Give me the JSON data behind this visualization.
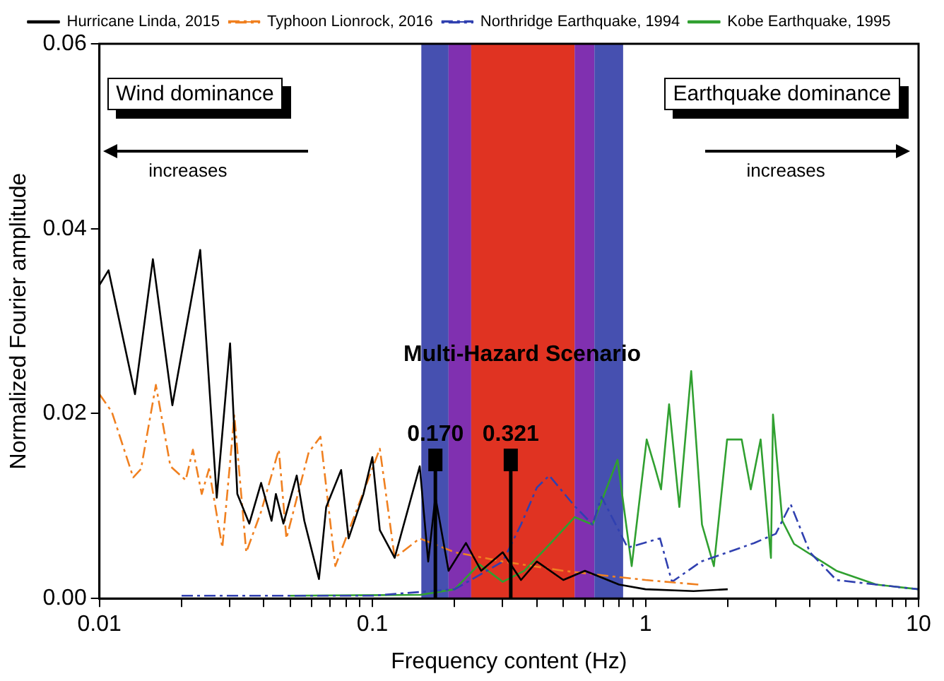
{
  "chart_data": {
    "type": "line",
    "xlabel": "Frequency content (Hz)",
    "ylabel": "Normalized Fourier amplitude",
    "log": "x",
    "xlim": [
      0.01,
      10
    ],
    "ylim": [
      0,
      0.06
    ],
    "xticks": [
      0.01,
      {
        "value": 0.02,
        "label": null
      },
      {
        "value": 0.03,
        "label": null
      },
      {
        "value": 0.04,
        "label": null
      },
      {
        "value": 0.05,
        "label": null
      },
      {
        "value": 0.06,
        "label": null
      },
      {
        "value": 0.07,
        "label": null
      },
      {
        "value": 0.08,
        "label": null
      },
      {
        "value": 0.09,
        "label": null
      },
      0.1,
      {
        "value": 0.2,
        "label": null
      },
      {
        "value": 0.3,
        "label": null
      },
      {
        "value": 0.4,
        "label": null
      },
      {
        "value": 0.5,
        "label": null
      },
      {
        "value": 0.6,
        "label": null
      },
      {
        "value": 0.7,
        "label": null
      },
      {
        "value": 0.8,
        "label": null
      },
      {
        "value": 0.9,
        "label": null
      },
      1,
      {
        "value": 2,
        "label": null
      },
      {
        "value": 3,
        "label": null
      },
      {
        "value": 4,
        "label": null
      },
      {
        "value": 5,
        "label": null
      },
      {
        "value": 6,
        "label": null
      },
      {
        "value": 7,
        "label": null
      },
      {
        "value": 8,
        "label": null
      },
      {
        "value": 9,
        "label": null
      },
      10
    ],
    "yticks": [
      {
        "value": 0,
        "label": "0.00"
      },
      {
        "value": 0.02,
        "label": "0.02"
      },
      {
        "value": 0.04,
        "label": "0.04"
      },
      {
        "value": 0.06,
        "label": "0.06"
      }
    ],
    "grid": false,
    "legend": "top",
    "marker": "none",
    "bands": [
      {
        "axis": "x",
        "from": 0.151,
        "to": 0.19,
        "color": "#4650b0"
      },
      {
        "axis": "x",
        "from": 0.19,
        "to": 0.23,
        "color": "#8030b0"
      },
      {
        "axis": "x",
        "from": 0.23,
        "to": 0.55,
        "color": "#e03322"
      },
      {
        "axis": "x",
        "from": 0.55,
        "to": 0.65,
        "color": "#8030b0"
      },
      {
        "axis": "x",
        "from": 0.65,
        "to": 0.828,
        "color": "#4650b0"
      }
    ],
    "ref_lines": [
      {
        "axis": "x",
        "value": 0.17,
        "label": "0.170"
      },
      {
        "axis": "x",
        "value": 0.321,
        "label": "0.321"
      }
    ],
    "annotations": [
      "Wind dominance",
      "increases",
      "Earthquake dominance",
      "increases",
      "Multi-Hazard Scenario"
    ],
    "series": [
      {
        "name": "Hurricane Linda, 2015",
        "color": "#000000",
        "line_style": "solid",
        "x": [
          0.01,
          0.0108,
          0.0135,
          0.0157,
          0.0185,
          0.0234,
          0.0269,
          0.0301,
          0.032,
          0.0354,
          0.0391,
          0.0427,
          0.0443,
          0.0472,
          0.0528,
          0.0563,
          0.0637,
          0.0677,
          0.0768,
          0.0818,
          0.0927,
          0.0999,
          0.1064,
          0.1206,
          0.149,
          0.16,
          0.17,
          0.19,
          0.22,
          0.25,
          0.3,
          0.35,
          0.4,
          0.5,
          0.6,
          0.8,
          1.0,
          1.5,
          2.0
        ],
        "values": [
          0.0339,
          0.0355,
          0.0221,
          0.0367,
          0.0209,
          0.0377,
          0.0109,
          0.0276,
          0.0113,
          0.0081,
          0.0125,
          0.0084,
          0.0113,
          0.0081,
          0.0133,
          0.0084,
          0.0021,
          0.0099,
          0.0139,
          0.0065,
          0.0113,
          0.0153,
          0.0074,
          0.0044,
          0.0143,
          0.004,
          0.011,
          0.003,
          0.006,
          0.003,
          0.005,
          0.002,
          0.004,
          0.002,
          0.003,
          0.0015,
          0.001,
          0.0008,
          0.001
        ]
      },
      {
        "name": "Typhoon Lionrock, 2016",
        "color": "#f08020",
        "line_style": "dashed",
        "x": [
          0.01,
          0.0111,
          0.0133,
          0.0142,
          0.0161,
          0.0182,
          0.0207,
          0.022,
          0.0237,
          0.0252,
          0.0282,
          0.0312,
          0.0345,
          0.0391,
          0.0454,
          0.0484,
          0.0584,
          0.0645,
          0.0731,
          0.0871,
          0.1064,
          0.1206,
          0.149,
          0.2,
          0.3,
          0.5,
          0.7,
          1.0,
          1.57
        ],
        "values": [
          0.0221,
          0.0202,
          0.0131,
          0.014,
          0.0231,
          0.0143,
          0.0128,
          0.0161,
          0.0113,
          0.014,
          0.0055,
          0.0198,
          0.005,
          0.0094,
          0.0161,
          0.0065,
          0.0158,
          0.0175,
          0.0035,
          0.0094,
          0.0162,
          0.0044,
          0.0065,
          0.005,
          0.004,
          0.003,
          0.0025,
          0.002,
          0.0015
        ]
      },
      {
        "name": "Northridge Earthquake, 1994",
        "color": "#3040b0",
        "line_style": "dashed",
        "x": [
          0.02,
          0.1,
          0.2,
          0.3,
          0.35,
          0.4,
          0.444,
          0.55,
          0.64,
          0.69,
          0.86,
          1.13,
          1.25,
          1.6,
          2.0,
          2.5,
          3.0,
          3.4,
          4.0,
          5.0,
          7.0,
          10
        ],
        "values": [
          0.0003,
          0.0003,
          0.001,
          0.004,
          0.008,
          0.012,
          0.0133,
          0.01,
          0.008,
          0.011,
          0.0055,
          0.0065,
          0.0018,
          0.004,
          0.005,
          0.006,
          0.007,
          0.0102,
          0.005,
          0.002,
          0.0015,
          0.001
        ]
      },
      {
        "name": "Kobe Earthquake, 1995",
        "color": "#30a030",
        "line_style": "solid",
        "x": [
          0.05,
          0.15,
          0.2,
          0.246,
          0.3,
          0.36,
          0.45,
          0.55,
          0.64,
          0.79,
          0.89,
          1.01,
          1.08,
          1.14,
          1.22,
          1.33,
          1.47,
          1.61,
          1.78,
          1.99,
          2.25,
          2.43,
          2.64,
          2.88,
          2.93,
          3.17,
          3.5,
          5.0,
          7.0,
          10
        ],
        "values": [
          0.0003,
          0.0004,
          0.001,
          0.0037,
          0.0018,
          0.003,
          0.006,
          0.0088,
          0.008,
          0.015,
          0.0035,
          0.0172,
          0.0143,
          0.0118,
          0.021,
          0.0099,
          0.0246,
          0.008,
          0.0035,
          0.0172,
          0.0172,
          0.0118,
          0.0172,
          0.0044,
          0.0199,
          0.0084,
          0.0059,
          0.003,
          0.0015,
          0.001
        ]
      }
    ]
  }
}
